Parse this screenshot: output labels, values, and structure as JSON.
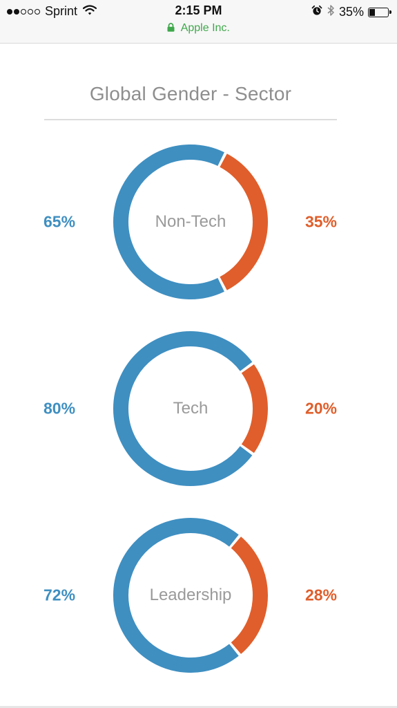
{
  "status_bar": {
    "carrier": "Sprint",
    "signal_bars_filled": 2,
    "signal_bars_total": 5,
    "time": "2:15 PM",
    "battery_percent": "35%",
    "battery_level": 0.35,
    "icons": [
      "wifi-icon",
      "alarm-icon",
      "bluetooth-icon",
      "battery-icon"
    ]
  },
  "url_bar": {
    "site_name": "Apple Inc.",
    "secure": true,
    "color": "#3fa84b"
  },
  "page": {
    "title": "Global Gender - Sector"
  },
  "colors": {
    "male": "#3f8fc1",
    "female": "#e05e2b",
    "label": "#9a9a9a"
  },
  "chart_data": [
    {
      "type": "pie",
      "label": "Non-Tech",
      "values": [
        65,
        35
      ],
      "left_label": "65%",
      "right_label": "35%"
    },
    {
      "type": "pie",
      "label": "Tech",
      "values": [
        80,
        20
      ],
      "left_label": "80%",
      "right_label": "20%"
    },
    {
      "type": "pie",
      "label": "Leadership",
      "values": [
        72,
        28
      ],
      "left_label": "72%",
      "right_label": "28%"
    }
  ]
}
